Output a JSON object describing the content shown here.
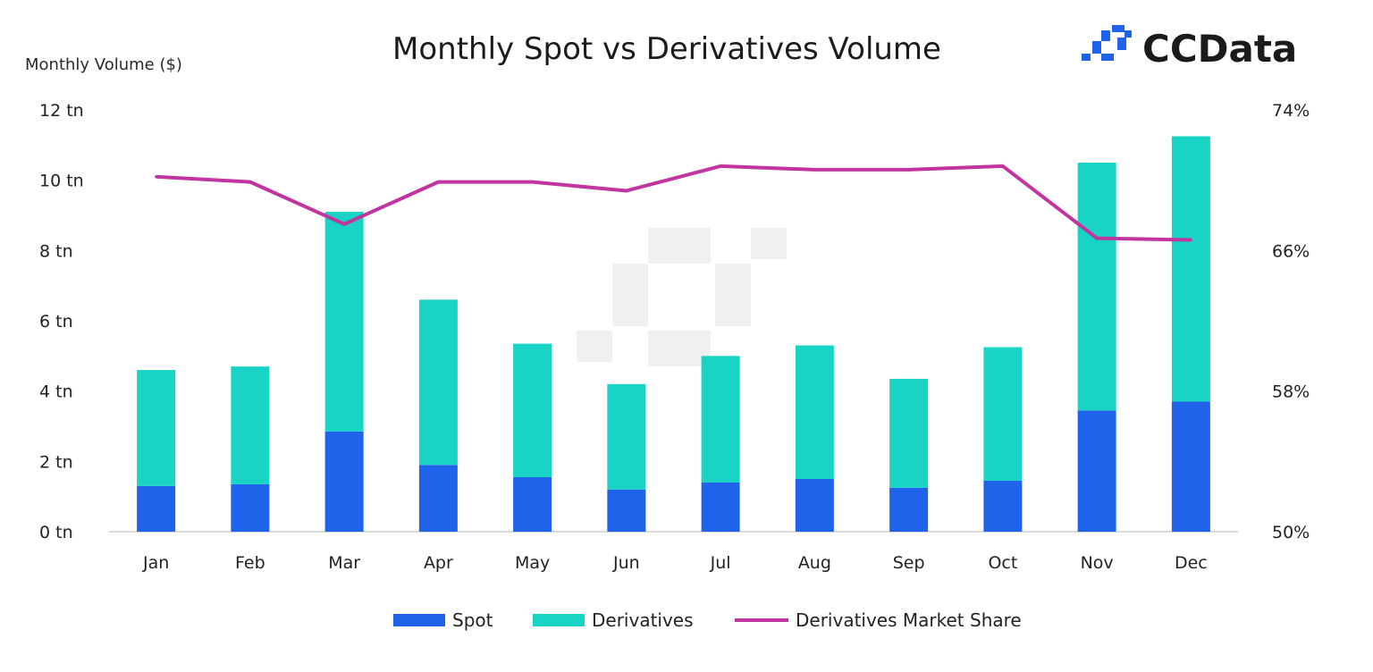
{
  "brand": {
    "name": "CCData",
    "icon": "ccdata-logo-icon"
  },
  "chart_data": {
    "type": "bar",
    "stacked": true,
    "title": "Monthly Spot vs Derivatives Volume",
    "ylabel": "Monthly Volume ($)",
    "categories": [
      "Jan",
      "Feb",
      "Mar",
      "Apr",
      "May",
      "Jun",
      "Jul",
      "Aug",
      "Sep",
      "Oct",
      "Nov",
      "Dec"
    ],
    "series": [
      {
        "name": "Spot",
        "kind": "bar",
        "color": "#1e63e9",
        "values": [
          1.3,
          1.35,
          2.85,
          1.9,
          1.55,
          1.2,
          1.4,
          1.5,
          1.25,
          1.45,
          3.45,
          3.7
        ]
      },
      {
        "name": "Derivatives",
        "kind": "bar",
        "color": "#19d3c5",
        "values": [
          3.3,
          3.35,
          6.25,
          4.7,
          3.8,
          3.0,
          3.6,
          3.8,
          3.1,
          3.8,
          7.05,
          7.55
        ]
      },
      {
        "name": "Derivatives Market Share",
        "kind": "line",
        "axis": "right",
        "color": "#c0359f",
        "values": [
          70.2,
          69.9,
          67.5,
          69.9,
          69.9,
          69.4,
          70.8,
          70.6,
          70.6,
          70.8,
          66.7,
          66.6
        ]
      }
    ],
    "y_left": {
      "range": [
        0,
        12
      ],
      "ticks": [
        "0 tn",
        "2 tn",
        "4 tn",
        "6 tn",
        "8 tn",
        "10 tn",
        "12 tn"
      ]
    },
    "y_right": {
      "range": [
        50,
        74
      ],
      "ticks": [
        "50%",
        "58%",
        "66%",
        "74%"
      ]
    },
    "legend": {
      "position": "bottom"
    },
    "grid": false
  }
}
